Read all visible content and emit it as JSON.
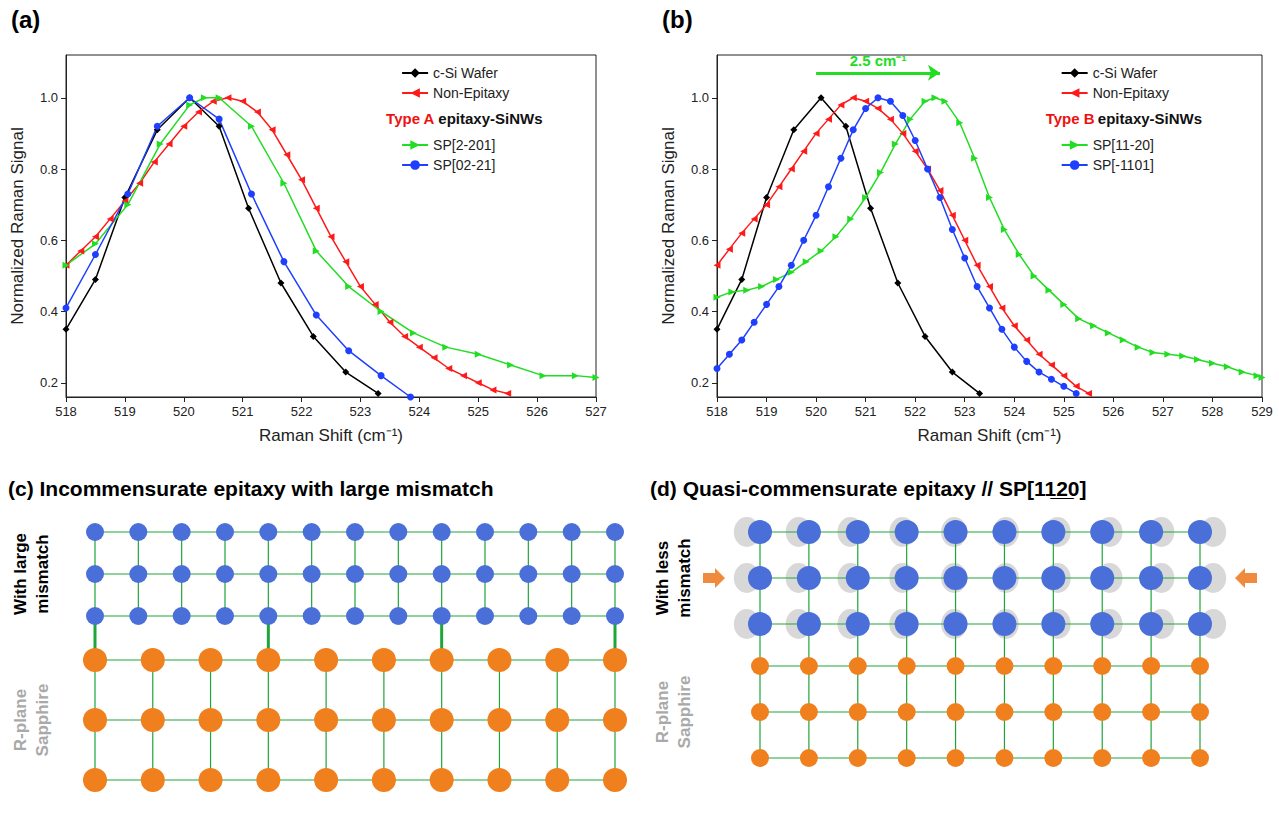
{
  "chart_data": [
    {
      "type": "line",
      "panel": "(a)",
      "xlabel": "Raman Shift (cm⁻¹)",
      "ylabel": "Normalized Raman Signal",
      "xlim": [
        518,
        527
      ],
      "xticks": [
        518,
        519,
        520,
        521,
        522,
        523,
        524,
        525,
        526,
        527
      ],
      "ylim": [
        0.16,
        1.12
      ],
      "yticks": [
        0.2,
        0.4,
        0.6,
        0.8,
        {
          "value": 1,
          "label": "1.0"
        }
      ],
      "grid": false,
      "legend": "upper right",
      "series": [
        {
          "name": "c-Si Wafer",
          "color": "#000000",
          "marker": "diamond",
          "x": [
            518,
            518.5,
            519,
            519.55,
            520.1,
            520.6,
            521.1,
            521.65,
            522.2,
            522.75,
            523.3
          ],
          "values": [
            0.35,
            0.49,
            0.72,
            0.91,
            1.0,
            0.92,
            0.69,
            0.48,
            0.33,
            0.23,
            0.17
          ]
        },
        {
          "name": "Non-Epitaxy",
          "color": "#ff1a1a",
          "marker": "triangle-left",
          "x": [
            518,
            518.25,
            518.5,
            518.75,
            519,
            519.25,
            519.5,
            519.75,
            520,
            520.25,
            520.5,
            520.75,
            521,
            521.25,
            521.5,
            521.75,
            522,
            522.25,
            522.5,
            522.75,
            523,
            523.25,
            523.5,
            523.75,
            524,
            524.25,
            524.5,
            524.75,
            525,
            525.25,
            525.5
          ],
          "values": [
            0.53,
            0.57,
            0.61,
            0.66,
            0.71,
            0.76,
            0.82,
            0.87,
            0.92,
            0.96,
            0.99,
            1.0,
            0.99,
            0.96,
            0.91,
            0.84,
            0.77,
            0.69,
            0.61,
            0.54,
            0.47,
            0.42,
            0.37,
            0.33,
            0.3,
            0.27,
            0.24,
            0.22,
            0.2,
            0.18,
            0.17
          ]
        },
        {
          "name": "SP[2-201]",
          "color": "#22dd22",
          "marker": "triangle-right",
          "group": "Type A epitaxy-SiNWs",
          "x": [
            518,
            518.5,
            519.05,
            519.6,
            520.1,
            520.35,
            520.6,
            521.15,
            521.7,
            522.25,
            522.8,
            523.35,
            523.9,
            524.45,
            525,
            525.55,
            526.1,
            526.65,
            527
          ],
          "values": [
            0.53,
            0.59,
            0.7,
            0.87,
            0.98,
            1.0,
            1.0,
            0.92,
            0.76,
            0.57,
            0.47,
            0.4,
            0.34,
            0.3,
            0.28,
            0.25,
            0.22,
            0.22,
            0.215
          ]
        },
        {
          "name": "SP[02-21]",
          "color": "#1f3fff",
          "marker": "circle",
          "group": "Type A epitaxy-SiNWs",
          "x": [
            518,
            518.5,
            519.05,
            519.55,
            520.1,
            520.6,
            521.15,
            521.7,
            522.25,
            522.8,
            523.35,
            523.85
          ],
          "values": [
            0.41,
            0.56,
            0.73,
            0.92,
            1.0,
            0.94,
            0.73,
            0.54,
            0.39,
            0.29,
            0.22,
            0.16
          ]
        }
      ]
    },
    {
      "type": "line",
      "panel": "(b)",
      "xlabel": "Raman Shift (cm⁻¹)",
      "ylabel": "Normalized Raman Signal",
      "xlim": [
        518,
        529
      ],
      "xticks": [
        518,
        519,
        520,
        521,
        522,
        523,
        524,
        525,
        526,
        527,
        528,
        529
      ],
      "ylim": [
        0.16,
        1.12
      ],
      "yticks": [
        0.2,
        0.4,
        0.6,
        0.8,
        {
          "value": 1,
          "label": "1.0"
        }
      ],
      "grid": false,
      "legend": "upper right",
      "annotations": [
        {
          "text": "2.5 cm⁻¹",
          "x": [
            520,
            522.5
          ],
          "y": 1.07,
          "color": "#22dd22"
        }
      ],
      "series": [
        {
          "name": "c-Si Wafer",
          "color": "#000000",
          "marker": "diamond",
          "x": [
            518,
            518.5,
            519,
            519.55,
            520.1,
            520.6,
            521.1,
            521.65,
            522.2,
            522.75,
            523.3
          ],
          "values": [
            0.35,
            0.49,
            0.72,
            0.91,
            1.0,
            0.92,
            0.69,
            0.48,
            0.33,
            0.23,
            0.17
          ]
        },
        {
          "name": "Non-Epitaxy",
          "color": "#ff1a1a",
          "marker": "triangle-left",
          "x": [
            518,
            518.25,
            518.5,
            518.75,
            519,
            519.25,
            519.5,
            519.75,
            520,
            520.25,
            520.5,
            520.75,
            521,
            521.25,
            521.5,
            521.75,
            522,
            522.25,
            522.5,
            522.75,
            523,
            523.25,
            523.5,
            523.75,
            524,
            524.25,
            524.5,
            524.75,
            525,
            525.25,
            525.5
          ],
          "values": [
            0.53,
            0.575,
            0.62,
            0.66,
            0.7,
            0.75,
            0.8,
            0.85,
            0.9,
            0.94,
            0.98,
            1.0,
            0.99,
            0.97,
            0.94,
            0.9,
            0.85,
            0.8,
            0.74,
            0.67,
            0.6,
            0.53,
            0.47,
            0.41,
            0.36,
            0.32,
            0.28,
            0.25,
            0.22,
            0.19,
            0.17
          ]
        },
        {
          "name": "SP[11-20]",
          "color": "#22dd22",
          "marker": "triangle-right",
          "group": "Type B epitaxy-SiNWs",
          "x": [
            518,
            518.3,
            518.6,
            518.9,
            519.2,
            519.5,
            519.8,
            520.1,
            520.4,
            520.7,
            521,
            521.3,
            521.6,
            521.9,
            522.2,
            522.4,
            522.6,
            522.9,
            523.2,
            523.5,
            523.8,
            524.1,
            524.4,
            524.7,
            525,
            525.3,
            525.6,
            525.9,
            526.2,
            526.5,
            526.8,
            527.1,
            527.4,
            527.7,
            528,
            528.3,
            528.6,
            528.9,
            529
          ],
          "values": [
            0.44,
            0.455,
            0.46,
            0.47,
            0.49,
            0.51,
            0.54,
            0.57,
            0.61,
            0.66,
            0.72,
            0.79,
            0.87,
            0.94,
            0.99,
            1.0,
            0.99,
            0.93,
            0.83,
            0.72,
            0.63,
            0.56,
            0.5,
            0.46,
            0.42,
            0.38,
            0.36,
            0.34,
            0.32,
            0.3,
            0.285,
            0.28,
            0.275,
            0.265,
            0.255,
            0.245,
            0.23,
            0.22,
            0.215
          ]
        },
        {
          "name": "SP[-1101]",
          "color": "#1f3fff",
          "marker": "circle",
          "group": "Type B epitaxy-SiNWs",
          "x": [
            518,
            518.25,
            518.5,
            518.75,
            519,
            519.25,
            519.5,
            519.75,
            520,
            520.25,
            520.5,
            520.75,
            521,
            521.25,
            521.5,
            521.75,
            522,
            522.25,
            522.5,
            522.75,
            523,
            523.25,
            523.5,
            523.75,
            524,
            524.25,
            524.5,
            524.75,
            525,
            525.25
          ],
          "values": [
            0.24,
            0.28,
            0.32,
            0.37,
            0.42,
            0.47,
            0.53,
            0.6,
            0.67,
            0.75,
            0.83,
            0.91,
            0.97,
            1.0,
            0.99,
            0.95,
            0.88,
            0.8,
            0.72,
            0.63,
            0.55,
            0.47,
            0.41,
            0.35,
            0.3,
            0.26,
            0.23,
            0.21,
            0.19,
            0.17
          ]
        }
      ]
    }
  ],
  "diagrams": [
    {
      "title": "(c) Incommensurate epitaxy with large mismatch",
      "film_label": "With large mismatch",
      "substrate_label": "R-plane Sapphire",
      "film": {
        "rows": 3,
        "columns": 13
      },
      "substrate": {
        "rows": 3,
        "columns": 10
      },
      "strained": false
    },
    {
      "title": "(d) Quasi-commensurate epitaxy // SP[11̲2̲0]",
      "film_label": "With less mismatch",
      "substrate_label": "R-plane Sapphire",
      "film": {
        "rows": 3,
        "columns": 10
      },
      "substrate": {
        "rows": 3,
        "columns": 10
      },
      "strained": true
    }
  ]
}
